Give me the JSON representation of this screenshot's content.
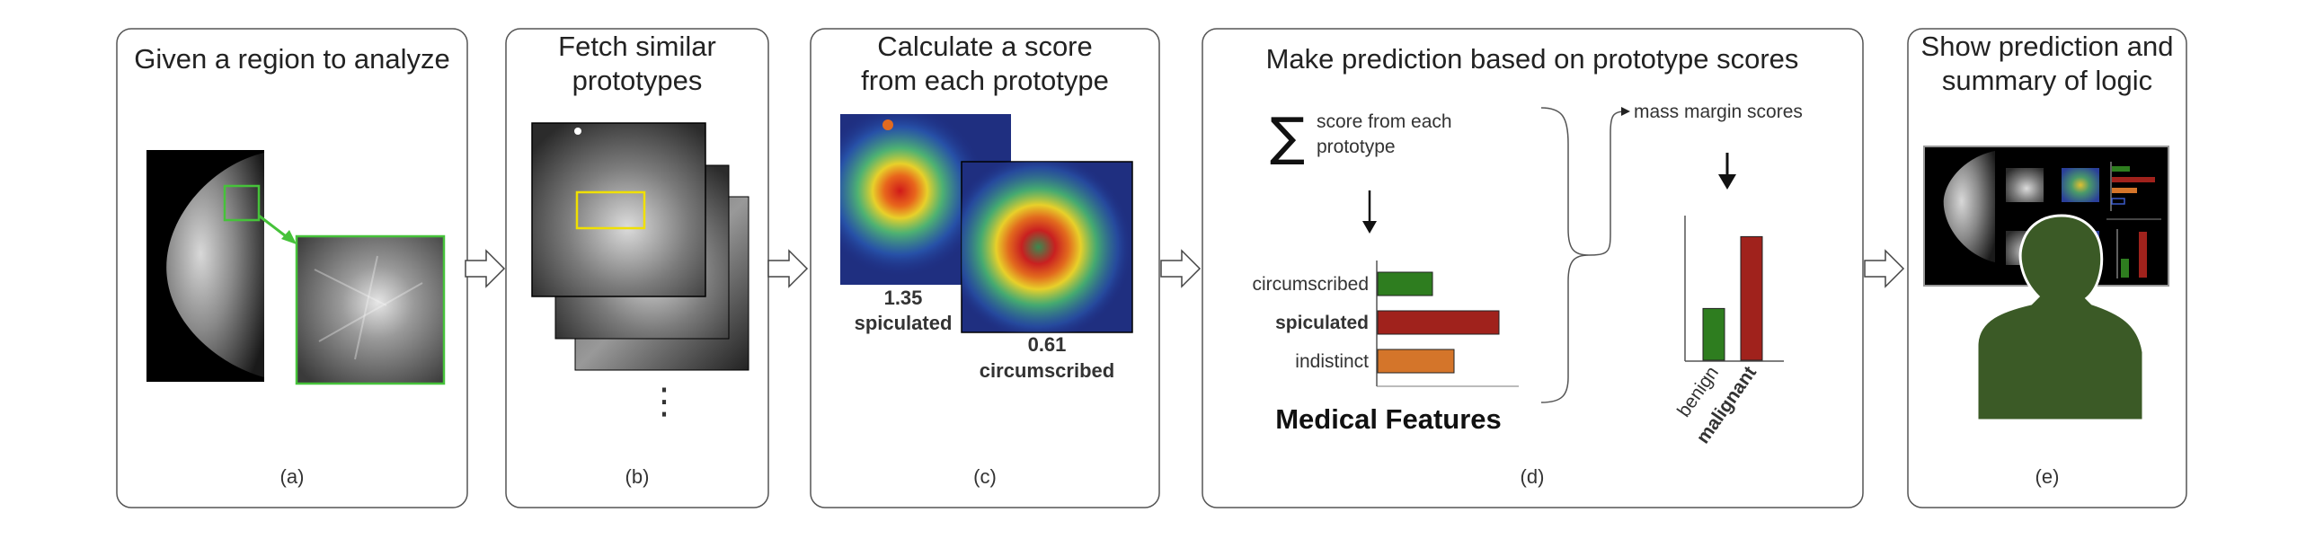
{
  "panels": [
    {
      "title_lines": [
        "Given a region to analyze"
      ],
      "caption": "(a)"
    },
    {
      "title_lines": [
        "Fetch similar",
        "prototypes"
      ],
      "caption": "(b)"
    },
    {
      "title_lines": [
        "Calculate a score",
        "from each prototype"
      ],
      "caption": "(c)"
    },
    {
      "title_lines": [
        "Make prediction based on prototype scores"
      ],
      "caption": "(d)"
    },
    {
      "title_lines": [
        "Show prediction and",
        "summary of logic"
      ],
      "caption": "(e)"
    }
  ],
  "panel_b": {
    "ellipsis": "⋮"
  },
  "panel_c": {
    "score1": "1.35",
    "label1": "spiculated",
    "score2": "0.61",
    "label2": "circumscribed"
  },
  "panel_d": {
    "sigma": "∑",
    "score_text_lines": [
      "score from each",
      "prototype"
    ],
    "mass_margin_text": "mass margin scores",
    "features_title": "Medical Features",
    "feature_bars": {
      "type": "bar",
      "categories": [
        "circumscribed",
        "spiculated",
        "indistinct"
      ],
      "values": [
        0.61,
        1.35,
        0.85
      ],
      "xlim": [
        0,
        1.5
      ],
      "colors": [
        "#2e7d1f",
        "#a0221c",
        "#d4752a"
      ],
      "highlight": "spiculated"
    },
    "prediction_bars": {
      "type": "bar",
      "categories": [
        "benign",
        "malignant"
      ],
      "values": [
        0.36,
        0.86
      ],
      "ylim": [
        0,
        1
      ],
      "colors": [
        "#2e7d1f",
        "#a0221c"
      ],
      "highlight": "malignant"
    }
  },
  "colors": {
    "roi_box": "#46c23a",
    "prototype_box": "#f0e000",
    "silhouette": "#3b5a26",
    "panel_border": "#555555"
  }
}
